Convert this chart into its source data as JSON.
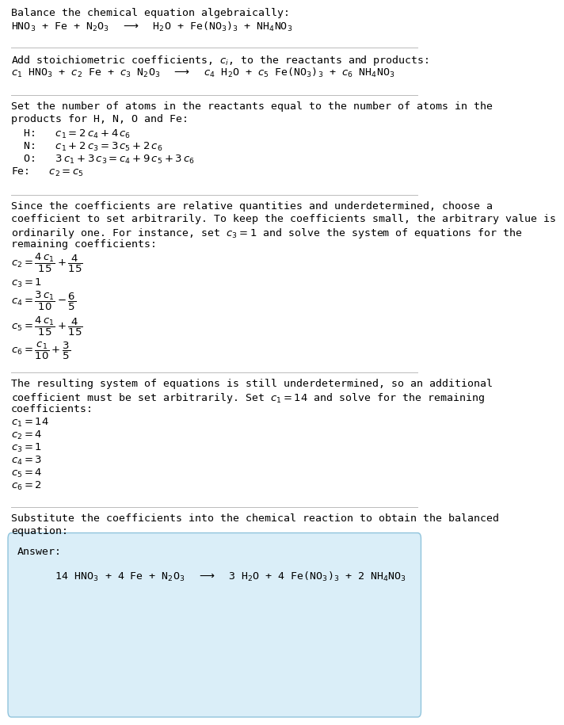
{
  "title": "Balance the chemical equation algebraically:",
  "eq1": "HNO$_3$ + Fe + N$_2$O$_3$  $\\longrightarrow$  H$_2$O + Fe(NO$_3$)$_3$ + NH$_4$NO$_3$",
  "section2_intro": "Add stoichiometric coefficients, $c_i$, to the reactants and products:",
  "eq2": "$c_1$ HNO$_3$ + $c_2$ Fe + $c_3$ N$_2$O$_3$  $\\longrightarrow$  $c_4$ H$_2$O + $c_5$ Fe(NO$_3$)$_3$ + $c_6$ NH$_4$NO$_3$",
  "section3_intro_line1": "Set the number of atoms in the reactants equal to the number of atoms in the",
  "section3_intro_line2": "products for H, N, O and Fe:",
  "eq_H": "  H:   $c_1 = 2\\,c_4 + 4\\,c_6$",
  "eq_N": "  N:   $c_1 + 2\\,c_3 = 3\\,c_5 + 2\\,c_6$",
  "eq_O": "  O:   $3\\,c_1 + 3\\,c_3 = c_4 + 9\\,c_5 + 3\\,c_6$",
  "eq_Fe": "Fe:   $c_2 = c_5$",
  "section4_line1": "Since the coefficients are relative quantities and underdetermined, choose a",
  "section4_line2": "coefficient to set arbitrarily. To keep the coefficients small, the arbitrary value is",
  "section4_line3": "ordinarily one. For instance, set $c_3 = 1$ and solve the system of equations for the",
  "section4_line4": "remaining coefficients:",
  "sol1_c2": "$c_2 = \\dfrac{4\\,c_1}{15} + \\dfrac{4}{15}$",
  "sol1_c3": "$c_3 = 1$",
  "sol1_c4": "$c_4 = \\dfrac{3\\,c_1}{10} - \\dfrac{6}{5}$",
  "sol1_c5": "$c_5 = \\dfrac{4\\,c_1}{15} + \\dfrac{4}{15}$",
  "sol1_c6": "$c_6 = \\dfrac{c_1}{10} + \\dfrac{3}{5}$",
  "section5_line1": "The resulting system of equations is still underdetermined, so an additional",
  "section5_line2": "coefficient must be set arbitrarily. Set $c_1 = 14$ and solve for the remaining",
  "section5_line3": "coefficients:",
  "sol2_c1": "$c_1 = 14$",
  "sol2_c2": "$c_2 = 4$",
  "sol2_c3": "$c_3 = 1$",
  "sol2_c4": "$c_4 = 3$",
  "sol2_c5": "$c_5 = 4$",
  "sol2_c6": "$c_6 = 2$",
  "section6_line1": "Substitute the coefficients into the chemical reaction to obtain the balanced",
  "section6_line2": "equation:",
  "answer_label": "Answer:",
  "answer_eq": "      14 HNO$_3$ + 4 Fe + N$_2$O$_3$  $\\longrightarrow$  3 H$_2$O + 4 Fe(NO$_3$)$_3$ + 2 NH$_4$NO$_3$",
  "bg_color": "#ffffff",
  "text_color": "#000000",
  "answer_box_color": "#daeef8",
  "answer_box_edge": "#90c4dc",
  "hr_color": "#bbbbbb",
  "font_size": 9.5
}
